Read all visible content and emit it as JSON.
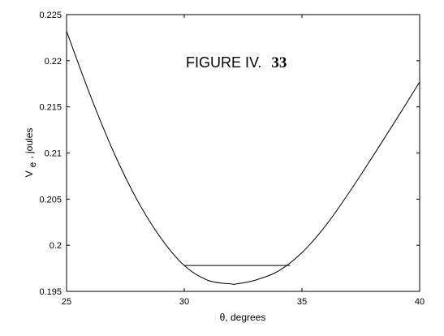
{
  "chart_data": {
    "type": "line",
    "title_main": "FIGURE IV.",
    "title_number": "33",
    "xlabel": "θ,  degrees",
    "ylabel_main": "V",
    "ylabel_sub": "e",
    "ylabel_rest": ",  joules",
    "xlim": [
      25,
      40
    ],
    "ylim": [
      0.195,
      0.225
    ],
    "x_ticks": [
      25,
      30,
      35,
      40
    ],
    "x_tick_labels": [
      "25",
      "30",
      "35",
      "40"
    ],
    "y_ticks": [
      0.195,
      0.2,
      0.205,
      0.21,
      0.215,
      0.22,
      0.225
    ],
    "y_tick_labels": [
      "0.195",
      "0.2",
      "0.205",
      "0.21",
      "0.215",
      "0.22",
      "0.225"
    ],
    "grid": false,
    "series": [
      {
        "x": [
          25,
          26,
          27,
          28,
          29,
          30,
          31,
          32,
          32.2,
          33,
          34,
          35,
          36,
          37,
          38,
          39,
          40
        ],
        "y": [
          0.2232,
          0.2163,
          0.2101,
          0.2049,
          0.2008,
          0.1978,
          0.1962,
          0.1958,
          0.1958,
          0.1962,
          0.1972,
          0.1992,
          0.2021,
          0.2057,
          0.2096,
          0.2136,
          0.2177
        ]
      }
    ],
    "annotations": [
      {
        "type": "hline",
        "y": 0.1978,
        "x_start": 30,
        "x_end": 34.5
      }
    ]
  }
}
